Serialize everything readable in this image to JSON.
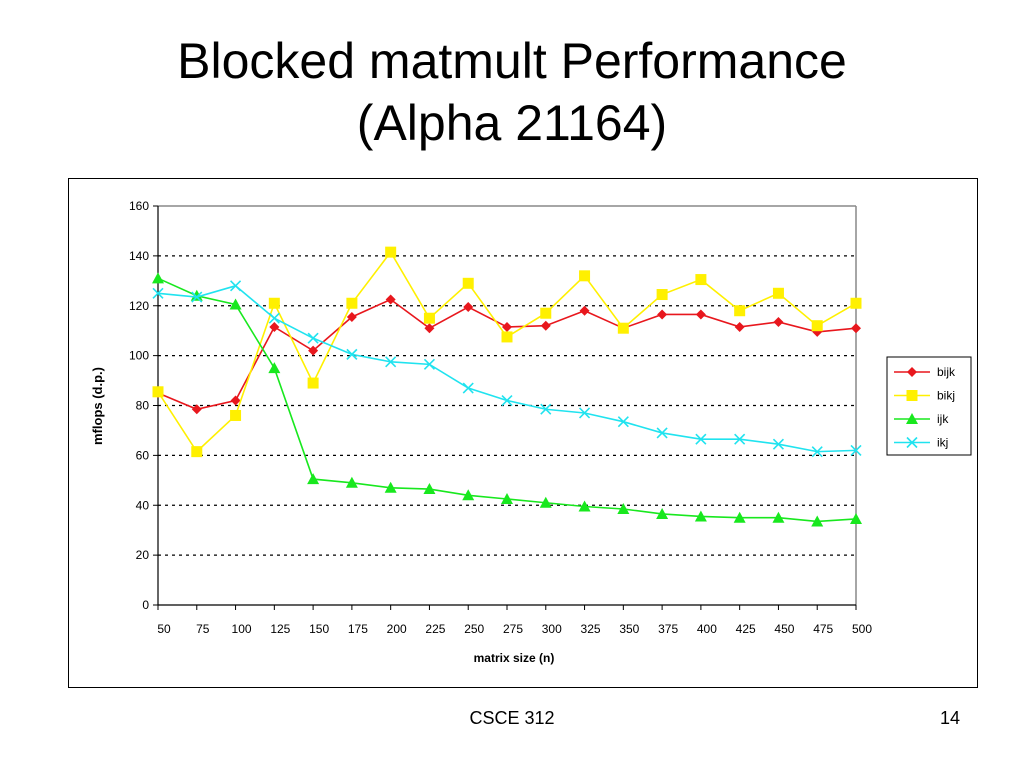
{
  "slide": {
    "title_line1": "Blocked matmult Performance",
    "title_line2": "(Alpha 21164)",
    "footer_course": "CSCE 312",
    "page_number": "14"
  },
  "chart_data": {
    "type": "line",
    "xlabel": "matrix size (n)",
    "ylabel": "mflops (d.p.)",
    "categories": [
      "50",
      "75",
      "100",
      "125",
      "150",
      "175",
      "200",
      "225",
      "250",
      "275",
      "300",
      "325",
      "350",
      "375",
      "400",
      "425",
      "450",
      "475",
      "500"
    ],
    "ylim": [
      0,
      160
    ],
    "yticks": [
      0,
      20,
      40,
      60,
      80,
      100,
      120,
      140,
      160
    ],
    "grid": "dotted horizontal",
    "legend_position": "right",
    "series": [
      {
        "name": "bijk",
        "color": "#e8171d",
        "marker": "diamond",
        "values": [
          85,
          78.5,
          82,
          111.5,
          102,
          115.5,
          122.5,
          111,
          119.5,
          111.5,
          112,
          118,
          111,
          116.5,
          116.5,
          111.5,
          113.5,
          109.5,
          111
        ]
      },
      {
        "name": "bikj",
        "color": "#fff000",
        "marker": "square",
        "values": [
          85.5,
          61.5,
          76,
          121,
          89,
          121,
          141.5,
          115,
          129,
          107.5,
          117,
          132,
          111,
          124.5,
          130.5,
          118,
          125,
          112,
          121
        ]
      },
      {
        "name": "ijk",
        "color": "#18e81e",
        "marker": "triangle",
        "values": [
          131,
          124,
          120.5,
          95,
          50.5,
          49,
          47,
          46.5,
          44,
          42.5,
          41,
          39.5,
          38.5,
          36.5,
          35.5,
          35,
          35,
          33.5,
          34.5
        ]
      },
      {
        "name": "ikj",
        "color": "#20e3ef",
        "marker": "x",
        "values": [
          125,
          123.5,
          128,
          115,
          107,
          100.5,
          97.5,
          96.5,
          87,
          82,
          78.5,
          77,
          73.5,
          69,
          66.5,
          66.5,
          64.5,
          61.5,
          62
        ]
      }
    ]
  }
}
